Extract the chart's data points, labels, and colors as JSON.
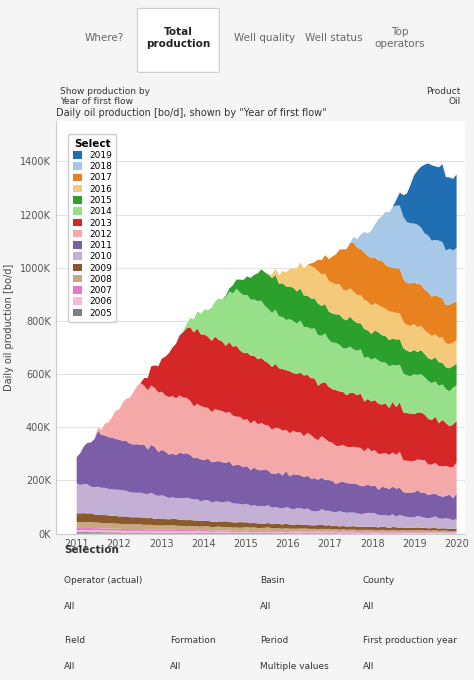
{
  "title_tab_nav": [
    "Where?",
    "Total\nproduction",
    "Well quality",
    "Well status",
    "Top\noperators"
  ],
  "active_tab": 1,
  "show_label": "Show production by\nYear of first flow",
  "product_label": "Product\nOil",
  "chart_title": "Daily oil production [bo/d], shown by \"Year of first flow\"",
  "ylabel": "Daily oil production [bo/d]",
  "xlim": [
    2010.5,
    2020.2
  ],
  "ylim": [
    0,
    1550000
  ],
  "yticks": [
    0,
    200000,
    400000,
    600000,
    800000,
    1000000,
    1200000,
    1400000
  ],
  "ytick_labels": [
    "0K",
    "200K",
    "400K",
    "600K",
    "800K",
    "1000K",
    "1200K",
    "1400K"
  ],
  "xticks": [
    2011,
    2012,
    2013,
    2014,
    2015,
    2016,
    2017,
    2018,
    2019,
    2020
  ],
  "legend_title": "Select",
  "legend_years": [
    "2019",
    "2018",
    "2017",
    "2016",
    "2015",
    "2014",
    "2013",
    "2012",
    "2011",
    "2010",
    "2009",
    "2008",
    "2007",
    "2006",
    "2005"
  ],
  "legend_colors": [
    "#1f6fb2",
    "#a8c8e8",
    "#e8821e",
    "#f5c97a",
    "#2ca02c",
    "#98df8a",
    "#d62728",
    "#f4a8a8",
    "#7b5ea7",
    "#c5b0d5",
    "#8b5a2b",
    "#c8a882",
    "#e878c8",
    "#f5b8e0",
    "#7f7f7f"
  ],
  "colors_bottom_to_top": {
    "2005": "#7f7f7f",
    "2006": "#f5b8e0",
    "2007": "#e878c8",
    "2008": "#c8a882",
    "2009": "#8b5a2b",
    "2010": "#c5b0d5",
    "2011": "#7b5ea7",
    "2012": "#f4a8a8",
    "2013": "#d62728",
    "2014": "#98df8a",
    "2015": "#2ca02c",
    "2016": "#f5c97a",
    "2017": "#e8821e",
    "2018": "#a8c8e8",
    "2019": "#1f6fb2"
  },
  "background_color": "#e8f4f8",
  "plot_bg": "#ffffff",
  "tab_bg": "#f0f0f0",
  "selection_bg": "#e8f4f8"
}
